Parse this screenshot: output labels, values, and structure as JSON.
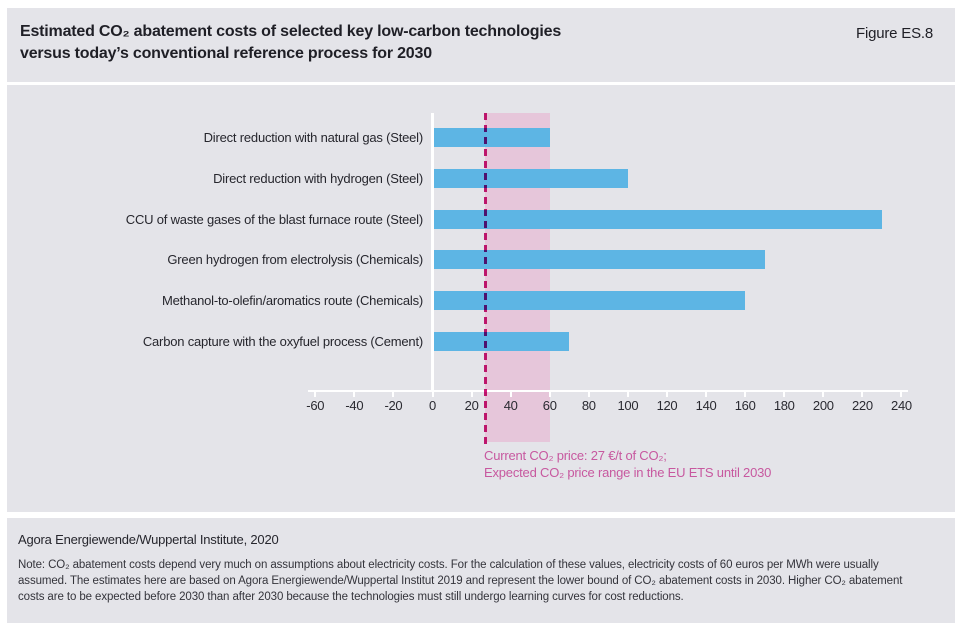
{
  "header": {
    "title_line1": "Estimated CO₂ abatement costs of selected key low-carbon technologies",
    "title_line2": "versus today’s conventional reference process for 2030",
    "figure_label": "Figure ES.8"
  },
  "chart_data": {
    "type": "bar",
    "orientation": "horizontal",
    "title": "Estimated CO₂ abatement costs of selected key low-carbon technologies versus today’s conventional reference process for 2030",
    "categories": [
      "Direct reduction with natural gas (Steel)",
      "Direct reduction with hydrogen (Steel)",
      "CCU of waste gases of the blast furnace route (Steel)",
      "Green hydrogen from electrolysis (Chemicals)",
      "Methanol-to-olefin/aromatics route (Chemicals)",
      "Carbon capture with the oxyfuel process (Cement)"
    ],
    "values": [
      60,
      100,
      230,
      170,
      160,
      70
    ],
    "xlim": [
      -60,
      240
    ],
    "x_ticks": [
      -60,
      -40,
      -20,
      0,
      20,
      40,
      60,
      80,
      100,
      120,
      140,
      160,
      180,
      200,
      220,
      240
    ],
    "grid": false,
    "legend_position": "below-band",
    "reference_line": {
      "value": 27,
      "label": "Current CO₂ price: 27 €/t of CO₂"
    },
    "reference_band": {
      "from": 27,
      "to": 60,
      "label": "Expected CO₂ price range in the EU ETS until 2030"
    },
    "colors": {
      "bar": "#5db5e4",
      "band": "#e6c6da",
      "reference_line": "#d2197b",
      "legend_text": "#c7589f",
      "panel_background": "#e4e4e9",
      "axis": "#ffffff"
    }
  },
  "legend": {
    "line1": "Current CO₂ price: 27 €/t of CO₂;",
    "line2": "Expected CO₂ price range in the EU ETS until 2030"
  },
  "footer": {
    "source": "Agora Energiewende/Wuppertal Institute, 2020",
    "note": "Note: CO₂ abatement costs depend very much on assumptions about electricity costs. For the calculation of these values, electricity costs of 60 euros per MWh were usually assumed. The estimates here are based on Agora Energiewende/Wuppertal Institut 2019 and represent the lower bound of CO₂ abatement costs in 2030. Higher CO₂ abatement costs are to be expected before 2030 than after 2030 because the technologies must still undergo learning curves for cost reductions."
  }
}
